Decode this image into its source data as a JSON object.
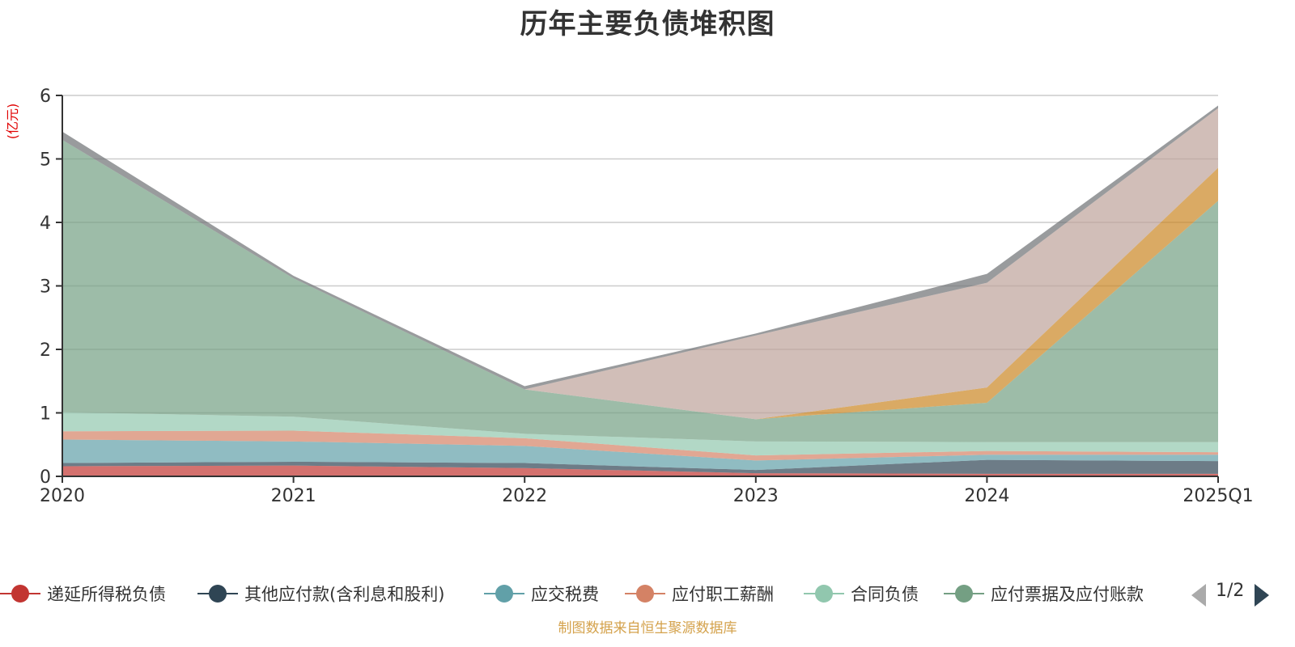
{
  "title": "历年主要负债堆积图",
  "source_note": "制图数据来自恒生聚源数据库",
  "pager": {
    "text": "1/2"
  },
  "chart_data": {
    "type": "area",
    "stacked": true,
    "title": "历年主要负债堆积图",
    "ylabel": "(亿元)",
    "ylim": [
      0,
      6
    ],
    "yticks": [
      "0",
      "1",
      "2",
      "3",
      "4",
      "5",
      "6"
    ],
    "categories": [
      "2020",
      "2021",
      "2022",
      "2023",
      "2024",
      "2025Q1"
    ],
    "grid": true,
    "legend_position": "bottom",
    "series": [
      {
        "name": "递延所得税负债",
        "color": "#c23531",
        "values": [
          0.16,
          0.17,
          0.13,
          0.05,
          0.04,
          0.04
        ]
      },
      {
        "name": "其他应付款(含利息和股利)",
        "color": "#2f4554",
        "values": [
          0.05,
          0.06,
          0.08,
          0.05,
          0.22,
          0.2
        ]
      },
      {
        "name": "应交税费",
        "color": "#61a0a8",
        "values": [
          0.37,
          0.32,
          0.27,
          0.15,
          0.08,
          0.1
        ]
      },
      {
        "name": "应付职工薪酬",
        "color": "#d48265",
        "values": [
          0.13,
          0.17,
          0.12,
          0.08,
          0.06,
          0.04
        ]
      },
      {
        "name": "合同负债",
        "color": "#91c7ae",
        "values": [
          0.3,
          0.22,
          0.07,
          0.22,
          0.14,
          0.16
        ]
      },
      {
        "name": "应付票据及应付账款",
        "color": "#749f83",
        "values": [
          4.29,
          2.18,
          0.7,
          0.35,
          0.62,
          3.8
        ]
      },
      {
        "name": "",
        "color": "#ca8622",
        "values": [
          0,
          0,
          0,
          0,
          0.24,
          0.52
        ]
      },
      {
        "name": "",
        "color": "#bda29a",
        "values": [
          0,
          0,
          0,
          1.32,
          1.65,
          0.94
        ]
      },
      {
        "name": "",
        "color": "#6e7074",
        "values": [
          0.13,
          0.04,
          0.05,
          0.03,
          0.14,
          0.04
        ]
      }
    ]
  }
}
